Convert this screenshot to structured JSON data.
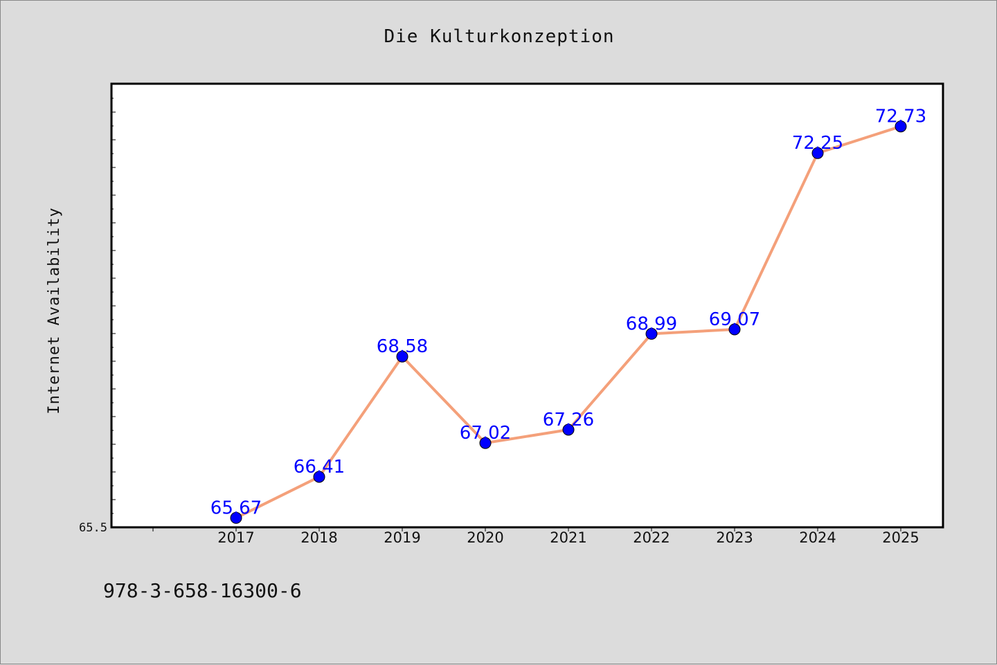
{
  "chart_data": {
    "type": "line",
    "title": "Die Kulturkonzeption",
    "xlabel": "",
    "ylabel": "Internet Availability",
    "categories": [
      "2017",
      "2018",
      "2019",
      "2020",
      "2021",
      "2022",
      "2023",
      "2024",
      "2025"
    ],
    "series": [
      {
        "values": [
          65.67,
          66.41,
          68.58,
          67.02,
          67.26,
          68.99,
          69.07,
          72.25,
          72.73
        ],
        "labels": [
          "65.67",
          "66.41",
          "68.58",
          "67.02",
          "67.26",
          "68.99",
          "69.07",
          "72.25",
          "72.73"
        ],
        "line_color": "#f4a07a",
        "marker_color": "#0000ff"
      }
    ],
    "ylim": [
      65.5,
      73.5
    ],
    "ytick_labels": [
      "65.5"
    ],
    "grid": false,
    "legend": "none",
    "annotation": "978-3-658-16300-6"
  },
  "colors": {
    "background": "#dcdcdc",
    "plot_background": "#ffffff",
    "line": "#f4a07a",
    "marker": "#0000ff",
    "data_label": "#0000ff"
  }
}
